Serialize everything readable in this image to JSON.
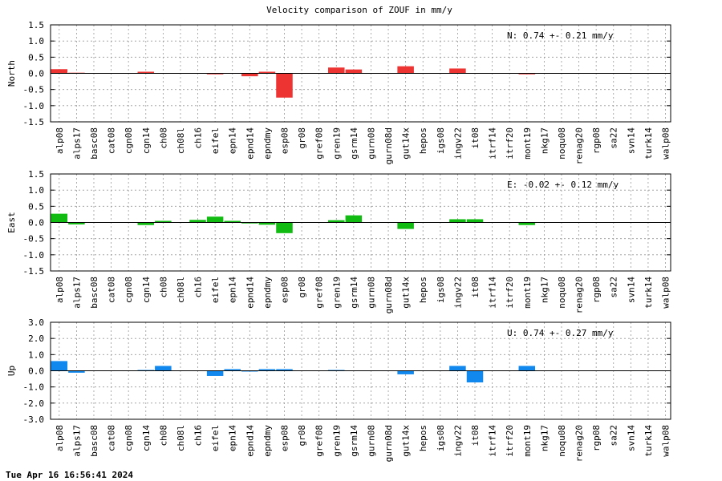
{
  "chart_data": {
    "type": "bar",
    "title": "Velocity comparison of ZOUF in mm/y",
    "categories": [
      "alp08",
      "alps17",
      "basc08",
      "cat08",
      "cgn08",
      "cgn14",
      "ch08",
      "ch08l",
      "ch16",
      "eifel",
      "epn14",
      "epnd14",
      "epndmy",
      "esp08",
      "gr08",
      "gref08",
      "gren19",
      "gsrm14",
      "gurn08",
      "gurn08d",
      "gut14x",
      "hepos",
      "igs08",
      "ingv22",
      "it08",
      "itrf14",
      "itrf20",
      "mont19",
      "nkg17",
      "noqu08",
      "renag20",
      "rgp08",
      "sa22",
      "svn14",
      "turk14",
      "walp08"
    ],
    "grid": true,
    "panels": [
      {
        "ylabel": "North",
        "ylim": [
          -1.5,
          1.5
        ],
        "yticks": [
          "1.5",
          "1.0",
          "0.5",
          "0.0",
          "-0.5",
          "-1.0",
          "-1.5"
        ],
        "annotation": "N:   0.74 +-  0.21 mm/y",
        "color": "#ee3333",
        "series": [
          {
            "values": [
              0.13,
              0.02,
              0,
              0,
              0,
              0.05,
              0,
              0,
              0,
              -0.03,
              0,
              -0.09,
              0.05,
              -0.75,
              0,
              0,
              0.18,
              0.12,
              0,
              0,
              0.22,
              0,
              0,
              0.15,
              0,
              0,
              0,
              -0.03,
              0,
              0,
              0,
              0,
              0,
              0,
              0,
              0
            ]
          }
        ]
      },
      {
        "ylabel": "East",
        "ylim": [
          -1.5,
          1.5
        ],
        "yticks": [
          "1.5",
          "1.0",
          "0.5",
          "0.0",
          "-0.5",
          "-1.0",
          "-1.5"
        ],
        "annotation": "E:  -0.02 +-  0.12 mm/y",
        "color": "#11bb11",
        "series": [
          {
            "values": [
              0.27,
              -0.06,
              0,
              0,
              0,
              -0.08,
              0.05,
              0,
              0.08,
              0.18,
              0.05,
              -0.03,
              -0.07,
              -0.33,
              0,
              0,
              0.07,
              0.22,
              0,
              0,
              -0.2,
              0,
              0,
              0.1,
              0.1,
              0,
              0,
              -0.08,
              0,
              0,
              0,
              0,
              0,
              0,
              0,
              0
            ]
          }
        ]
      },
      {
        "ylabel": "Up",
        "ylim": [
          -3.0,
          3.0
        ],
        "yticks": [
          "3.0",
          "2.0",
          "1.0",
          "0.0",
          "-1.0",
          "-2.0",
          "-3.0"
        ],
        "annotation": "U:   0.74 +-  0.27 mm/y",
        "color": "#1188ee",
        "series": [
          {
            "values": [
              0.6,
              -0.12,
              0,
              0,
              0,
              0.05,
              0.3,
              0,
              0,
              -0.32,
              0.1,
              -0.05,
              0.1,
              0.1,
              0,
              0,
              0.05,
              0,
              0,
              0,
              -0.22,
              0,
              0,
              0.3,
              -0.72,
              0,
              0,
              0.3,
              0,
              0,
              0,
              0,
              0,
              0,
              0,
              0
            ]
          }
        ]
      }
    ]
  },
  "footer": {
    "timestamp": "Tue Apr 16 16:56:41 2024"
  }
}
